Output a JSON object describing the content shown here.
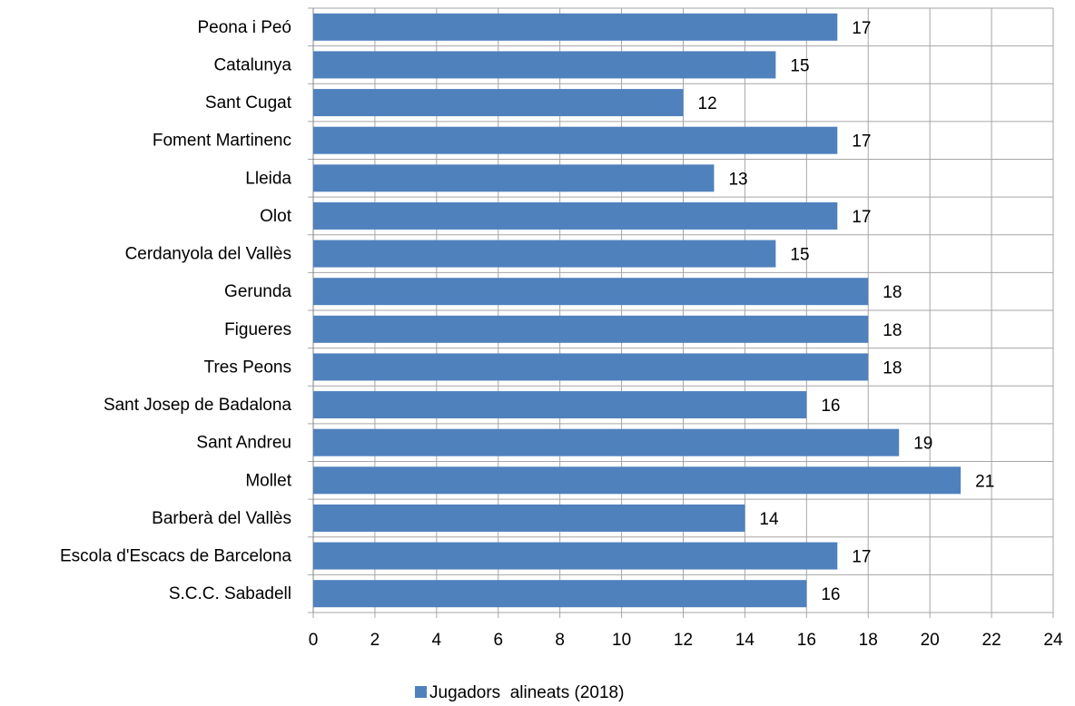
{
  "chart_data": {
    "type": "bar",
    "orientation": "horizontal",
    "categories": [
      "Peona i Peó",
      "Catalunya",
      "Sant Cugat",
      "Foment Martinenc",
      "Lleida",
      "Olot",
      "Cerdanyola del Vallès",
      "Gerunda",
      "Figueres",
      "Tres Peons",
      "Sant Josep de Badalona",
      "Sant Andreu",
      "Mollet",
      "Barberà del Vallès",
      "Escola d'Escacs de Barcelona",
      "S.C.C. Sabadell"
    ],
    "series": [
      {
        "name": "Jugadors  alineats (2018)",
        "color": "#4f81bd",
        "values": [
          17,
          15,
          12,
          17,
          13,
          17,
          15,
          18,
          18,
          18,
          16,
          19,
          21,
          14,
          17,
          16
        ]
      }
    ],
    "xlim": [
      0,
      24
    ],
    "xticks": [
      0,
      2,
      4,
      6,
      8,
      10,
      12,
      14,
      16,
      18,
      20,
      22,
      24
    ],
    "grid": true,
    "legend": "bottom"
  }
}
